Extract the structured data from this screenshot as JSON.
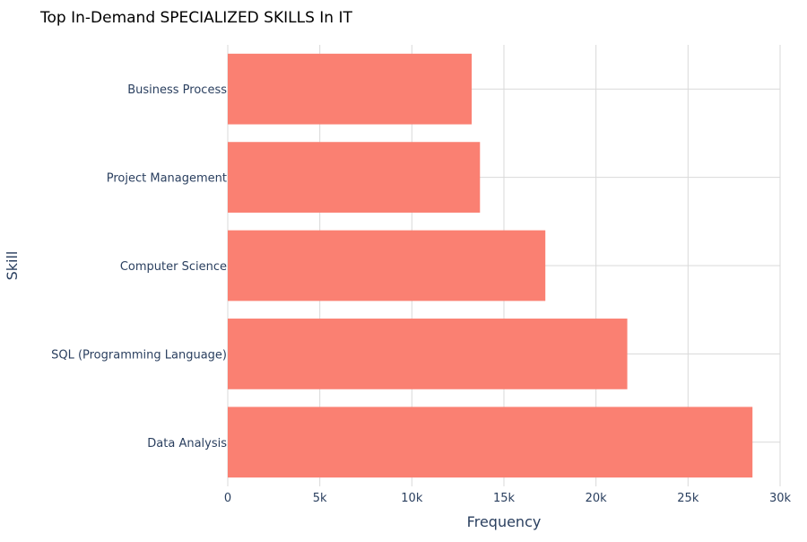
{
  "chart_data": {
    "type": "bar",
    "orientation": "horizontal",
    "title": "Top In-Demand SPECIALIZED SKILLS In IT",
    "xlabel": "Frequency",
    "ylabel": "Skill",
    "categories": [
      "Data Analysis",
      "SQL (Programming Language)",
      "Computer Science",
      "Project Management",
      "Business Process"
    ],
    "values": [
      28500,
      21700,
      17250,
      13700,
      13250
    ],
    "xlim": [
      0,
      30000
    ],
    "x_ticks": [
      0,
      5000,
      10000,
      15000,
      20000,
      25000,
      30000
    ],
    "x_tick_labels": [
      "0",
      "5k",
      "10k",
      "15k",
      "20k",
      "25k",
      "30k"
    ],
    "bar_color": "#fa8072",
    "grid": true
  }
}
